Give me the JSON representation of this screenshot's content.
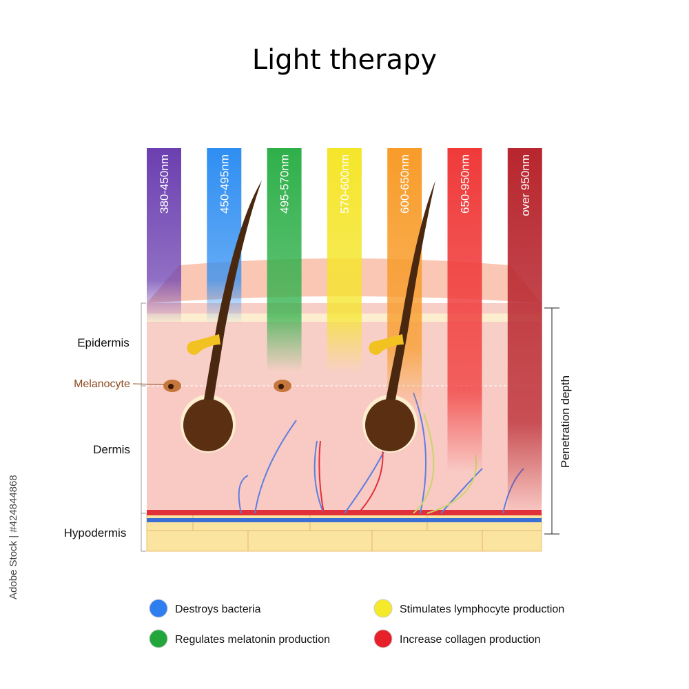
{
  "title": "Light therapy",
  "bands": [
    "380-450nm",
    "450-495nm",
    "495-570nm",
    "570-600nm",
    "600-650nm",
    "650-950nm",
    "over  950nm"
  ],
  "layers": {
    "epidermis": "Epidermis",
    "melanocyte": "Melanocyte",
    "dermis": "Dermis",
    "hypodermis": "Hypodermis"
  },
  "penetration": "Penetration depth",
  "legend": [
    "Destroys bacteria",
    "Regulates melatonin production",
    "Stimulates lymphocyte production",
    "Increase collagen production"
  ],
  "watermark": "Adobe Stock | #424844868"
}
